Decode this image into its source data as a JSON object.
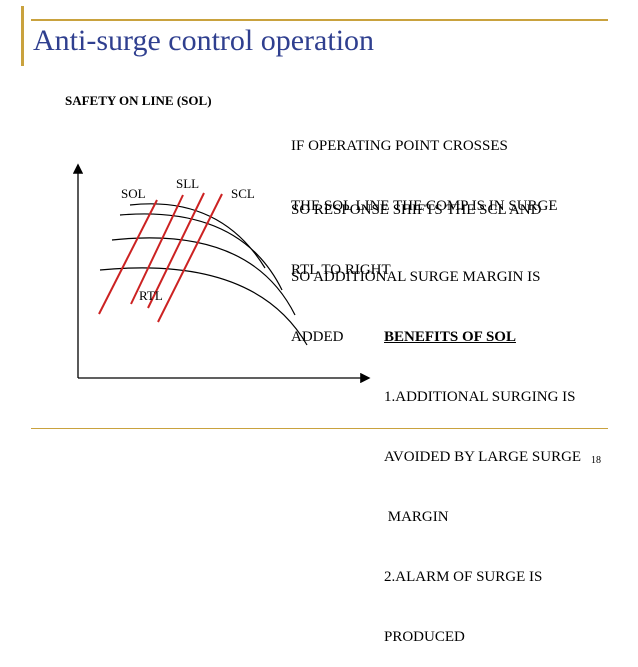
{
  "slide": {
    "title": "Anti-surge control operation",
    "subheading": "SAFETY ON LINE (SOL)",
    "page_number": "18"
  },
  "diagram": {
    "labels": {
      "sol": "SOL",
      "sll": "SLL",
      "scl": "SCL",
      "rtl": "RTL"
    },
    "line_color": "#cc2222",
    "curve_color": "#000000"
  },
  "text": {
    "para1_line1": "IF OPERATING POINT CROSSES",
    "para1_line2": "THE SOL LINE THE COMP IS IN SURGE",
    "para2_line1": "SO RESPONSE SHIFTS THE SCL AND",
    "para2_line2": "RTL TO RIGHT",
    "para3_line1": "SO ADDITIONAL SURGE MARGIN IS",
    "para3_line2": "ADDED"
  },
  "benefits": {
    "heading": "BENEFITS OF SOL",
    "line1": "1.ADDITIONAL SURGING IS",
    "line2": "AVOIDED BY LARGE SURGE",
    "line3": " MARGIN",
    "line4": "2.ALARM OF SURGE IS",
    "line5": "PRODUCED"
  },
  "theme": {
    "accent": "#c9a23e",
    "title_color": "#2f3f8f"
  }
}
